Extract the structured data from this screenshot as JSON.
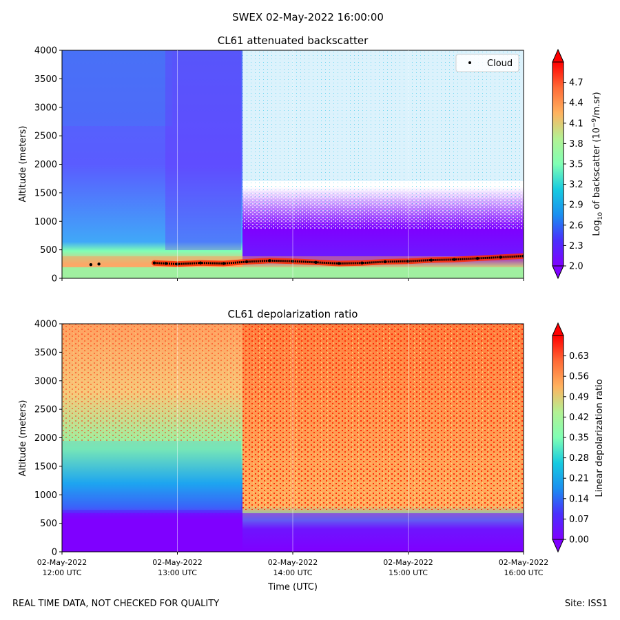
{
  "suptitle": "SWEX 02-May-2022 16:00:00",
  "footer_left": "REAL TIME DATA, NOT CHECKED FOR QUALITY",
  "footer_right": "Site: ISS1",
  "time_axis": {
    "xlabel": "Time (UTC)",
    "range_hours": [
      12,
      16
    ],
    "ticks": [
      {
        "hour": 12,
        "date": "02-May-2022",
        "time": "12:00 UTC"
      },
      {
        "hour": 13,
        "date": "02-May-2022",
        "time": "13:00 UTC"
      },
      {
        "hour": 14,
        "date": "02-May-2022",
        "time": "14:00 UTC"
      },
      {
        "hour": 15,
        "date": "02-May-2022",
        "time": "15:00 UTC"
      },
      {
        "hour": 16,
        "date": "02-May-2022",
        "time": "16:00 UTC"
      }
    ]
  },
  "chart_data": [
    {
      "type": "heatmap",
      "title": "CL61 attenuated backscatter",
      "ylabel": "Altitude (meters)",
      "ylim": [
        0,
        4000
      ],
      "yticks": [
        0,
        500,
        1000,
        1500,
        2000,
        2500,
        3000,
        3500,
        4000
      ],
      "colorbar": {
        "label": "Log10 of backscatter (10^-9/m.sr)",
        "label_parts": {
          "pre": "Log",
          "sub": "10",
          "mid": " of backscatter (10",
          "sup": "−9",
          "post": "/m.sr)"
        },
        "range": [
          2.0,
          5.0
        ],
        "ticks": [
          "2.0",
          "2.3",
          "2.6",
          "2.9",
          "3.2",
          "3.5",
          "3.8",
          "4.1",
          "4.4",
          "4.7"
        ],
        "extend": "both"
      },
      "legend": {
        "label": "Cloud",
        "marker": "dot",
        "placement": "upper-right"
      },
      "cloud_base_series": {
        "name": "Cloud",
        "x_hours": [
          12.25,
          12.32,
          12.8,
          12.9,
          13.0,
          13.2,
          13.4,
          13.6,
          13.8,
          14.0,
          14.2,
          14.4,
          14.6,
          14.8,
          15.0,
          15.2,
          15.4,
          15.6,
          15.8,
          16.0
        ],
        "y_m": [
          240,
          250,
          270,
          260,
          250,
          270,
          260,
          290,
          310,
          300,
          280,
          260,
          270,
          290,
          300,
          320,
          330,
          350,
          370,
          390
        ]
      }
    },
    {
      "type": "heatmap",
      "title": "CL61 depolarization ratio",
      "ylabel": "Altitude (meters)",
      "ylim": [
        0,
        4000
      ],
      "yticks": [
        0,
        500,
        1000,
        1500,
        2000,
        2500,
        3000,
        3500,
        4000
      ],
      "colorbar": {
        "label": "Linear depolarization ratio",
        "range": [
          0.0,
          0.7
        ],
        "ticks": [
          "0.00",
          "0.07",
          "0.14",
          "0.21",
          "0.28",
          "0.35",
          "0.42",
          "0.49",
          "0.56",
          "0.63"
        ],
        "extend": "both"
      }
    }
  ]
}
